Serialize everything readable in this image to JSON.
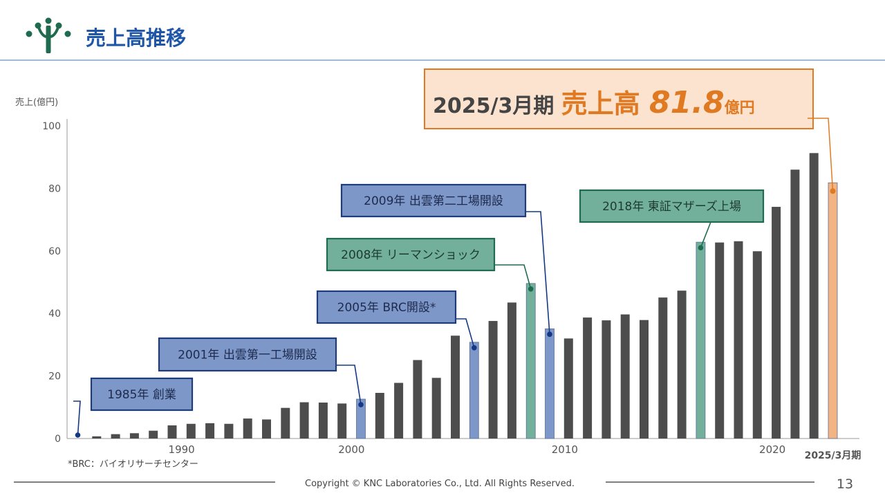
{
  "header": {
    "title": "売上高推移",
    "logo": "tree-logo"
  },
  "highlight": {
    "period": "2025/3月期",
    "label": "売上高",
    "value": "81.8",
    "unit": "億円"
  },
  "chart_data": {
    "type": "bar",
    "ylabel": "売上(億円)",
    "ylim": [
      0,
      100
    ],
    "yticks": [
      "0",
      "20",
      "40",
      "60",
      "80",
      "100"
    ],
    "x_ticks": [
      {
        "label": "1990",
        "at_index": 5.5
      },
      {
        "label": "2000",
        "at_index": 14.5
      },
      {
        "label": "2010",
        "at_index": 25.8
      },
      {
        "label": "2020",
        "at_index": 36.8
      },
      {
        "label": "2025/3月期",
        "at_index": 40
      }
    ],
    "values": [
      0,
      0.7,
      1.4,
      1.7,
      2.5,
      4.2,
      4.7,
      4.9,
      4.7,
      6.4,
      6.1,
      9.8,
      11.6,
      11.5,
      11.2,
      12.6,
      14.6,
      17.8,
      25.1,
      19.4,
      32.9,
      30.8,
      37.6,
      43.5,
      49.6,
      35.1,
      32.0,
      38.7,
      37.8,
      39.7,
      37.9,
      45.1,
      47.3,
      62.8,
      62.7,
      63.1,
      59.9,
      74.1,
      86.0,
      91.3,
      81.8
    ],
    "bar_color": "#4d4d4d",
    "highlight_bars": [
      {
        "index": 15,
        "color": "#7d97c8"
      },
      {
        "index": 21,
        "color": "#7d97c8"
      },
      {
        "index": 24,
        "color": "#72b09c"
      },
      {
        "index": 25,
        "color": "#7d97c8"
      },
      {
        "index": 33,
        "color": "#72b09c"
      },
      {
        "index": 40,
        "color": "#f2b483"
      }
    ],
    "annotations": [
      {
        "text": "1985年  創業",
        "index": 0,
        "style": "blue"
      },
      {
        "text": "2001年  出雲第一工場開設",
        "index": 15,
        "style": "blue"
      },
      {
        "text": "2005年  BRC開設*",
        "index": 21,
        "style": "blue"
      },
      {
        "text": "2008年  リーマンショック",
        "index": 24,
        "style": "green"
      },
      {
        "text": "2009年  出雲第二工場開設",
        "index": 25,
        "style": "blue"
      },
      {
        "text": "2018年  東証マザーズ上場",
        "index": 33,
        "style": "green"
      }
    ],
    "footnote": "*BRC：バイオリサーチセンター"
  },
  "footer": {
    "copyright": "Copyright © KNC Laboratories Co., Ltd. All Rights Reserved.",
    "page": "13"
  },
  "colors": {
    "brand_green": "#1e6b4f",
    "title_blue": "#1f56a8",
    "orange": "#e07a22",
    "blue_box_fill": "#7d97c8",
    "blue_box_border": "#1f3c7a",
    "green_box_fill": "#72b09c",
    "green_box_border": "#1e6b4f"
  }
}
